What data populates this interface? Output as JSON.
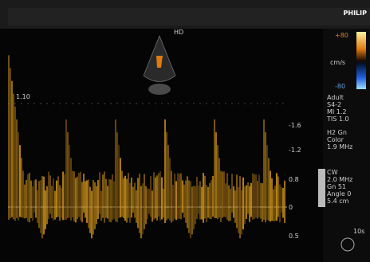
{
  "header": {
    "brand": "PHILIP"
  },
  "image": {
    "label": "HD",
    "depth_marker": "1.10"
  },
  "color_bar": {
    "top": "+80",
    "unit": "cm/s",
    "bottom": "-80"
  },
  "settings": {
    "lines": [
      "Adult",
      "S4-2",
      "MI 1.2",
      "TIS 1.0",
      "H2  Gn",
      "Color",
      "1.9 MHz"
    ]
  },
  "cw": {
    "lines": [
      "CW",
      "2.0 MHz",
      "Gn 51",
      "Angle 0",
      "5.4 cm"
    ]
  },
  "doppler": {
    "scale_labels": [
      "-1.6",
      "-1.2",
      "0.8",
      "0",
      "0.5"
    ],
    "sweep": "10s"
  }
}
